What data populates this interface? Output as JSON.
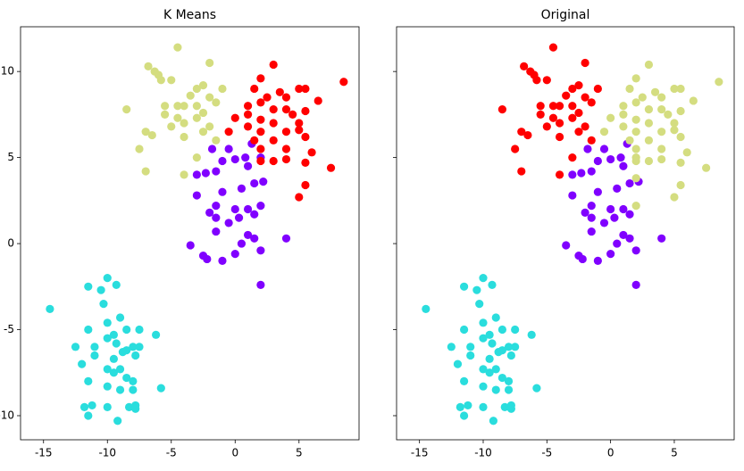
{
  "chart_data": [
    {
      "type": "scatter",
      "title": "K Means",
      "xlim": [
        -16.8,
        9.7
      ],
      "ylim": [
        -11.4,
        12.6
      ],
      "xticks": [
        -15,
        -10,
        -5,
        0,
        5
      ],
      "yticks": [
        -10,
        -5,
        0,
        5,
        10
      ],
      "show_yticklabels": true,
      "series": [
        {
          "color": "#8000ff",
          "x": [
            2,
            -3.5,
            -2.5,
            -2.2,
            -1,
            -1.5,
            0,
            0.5,
            1.5,
            2,
            4,
            1,
            -1.5,
            -0.5,
            0.3,
            1.5,
            -2,
            -1.5,
            0,
            1,
            2,
            -3,
            -1,
            0.5,
            1.5,
            2.2,
            -3,
            -1.5,
            -1,
            0,
            0.8,
            1,
            2,
            -1.8,
            -0.5,
            1.3,
            -2.3
          ],
          "y": [
            -2.4,
            -0.1,
            -0.7,
            -0.9,
            -1,
            0.7,
            -0.6,
            0,
            0.3,
            -0.4,
            0.3,
            0.5,
            1.5,
            1.2,
            1.5,
            1.7,
            1.8,
            2.2,
            2,
            2,
            2.2,
            2.8,
            3,
            3.2,
            3.5,
            3.6,
            4,
            4.2,
            4.8,
            4.9,
            5,
            4.5,
            5,
            5.5,
            5.5,
            5.8,
            4.1
          ]
        },
        {
          "color": "#2adddd",
          "x": [
            -14.5,
            -11.5,
            -10.5,
            -10,
            -9.3,
            -10.3,
            -11.5,
            -10,
            -9,
            -9.5,
            -8.5,
            -7.5,
            -6.2,
            -12.5,
            -11,
            -10,
            -9.3,
            -8.5,
            -8,
            -7.5,
            -12,
            -11,
            -9.5,
            -8.8,
            -7.8,
            -10,
            -9.5,
            -9,
            -8.5,
            -8,
            -11.5,
            -10,
            -9,
            -8,
            -5.8,
            -11.8,
            -11.5,
            -11.2,
            -10,
            -9.2,
            -8.3,
            -7.8,
            -7.8
          ],
          "y": [
            -3.8,
            -2.5,
            -2.7,
            -2,
            -2.4,
            -3.5,
            -5,
            -4.6,
            -4.3,
            -5.3,
            -5,
            -5,
            -5.3,
            -6,
            -6,
            -5.5,
            -5.8,
            -6.2,
            -6,
            -6,
            -7,
            -6.5,
            -6.7,
            -6.3,
            -6.5,
            -7.3,
            -7.5,
            -7.3,
            -7.8,
            -8,
            -8,
            -8.3,
            -8.5,
            -8.5,
            -8.4,
            -9.5,
            -10,
            -9.4,
            -9.5,
            -10.3,
            -9.5,
            -9.4,
            -9.6
          ]
        },
        {
          "color": "#d4dd80",
          "x": [
            -4.5,
            -6.8,
            -6.3,
            -2,
            -6,
            -5.8,
            -5,
            -3,
            -2.5,
            -3.5,
            -1,
            -2,
            -5.5,
            -4.5,
            -4,
            -3,
            -1.5,
            -8.5,
            -5.5,
            -4.5,
            -3,
            -2.5,
            -5,
            -4,
            -2,
            -7,
            -4,
            -6.5,
            -7.5,
            -2.5,
            -1.5,
            -3,
            -7,
            -4
          ],
          "y": [
            11.4,
            10.3,
            10,
            10.5,
            9.8,
            9.5,
            9.5,
            9,
            9.2,
            8.6,
            9,
            8.5,
            8,
            8,
            8,
            8,
            8.2,
            7.8,
            7.5,
            7.3,
            7.3,
            7.6,
            6.8,
            7,
            6.8,
            6.5,
            6.2,
            6.3,
            5.5,
            6.5,
            6,
            5,
            4.2,
            4
          ]
        },
        {
          "color": "#ff0000",
          "x": [
            2,
            3,
            1.5,
            2.5,
            3.5,
            4,
            5,
            5.5,
            6.5,
            8.5,
            1,
            2,
            3,
            4,
            4.5,
            5.5,
            1,
            2,
            3,
            5,
            0,
            1,
            2,
            4,
            5,
            -0.5,
            1.5,
            3,
            5.5,
            2,
            4,
            6,
            2,
            3,
            4,
            5.5,
            7.5,
            5.5,
            5
          ],
          "y": [
            9.6,
            10.4,
            9,
            8.5,
            8.8,
            8.5,
            9,
            9,
            8.3,
            9.4,
            8,
            8.2,
            7.8,
            7.8,
            7.5,
            7.7,
            7.5,
            7.2,
            7,
            7,
            7.3,
            6.8,
            6.5,
            6.5,
            6.6,
            6.5,
            6,
            6,
            6.2,
            5.5,
            5.5,
            5.3,
            4.8,
            4.8,
            4.9,
            4.7,
            4.4,
            3.4,
            2.7
          ]
        }
      ]
    },
    {
      "type": "scatter",
      "title": "Original",
      "xlim": [
        -16.8,
        9.7
      ],
      "ylim": [
        -11.4,
        12.6
      ],
      "xticks": [
        -15,
        -10,
        -5,
        0,
        5
      ],
      "yticks": [
        -10,
        -5,
        0,
        5,
        10
      ],
      "show_yticklabels": false,
      "series": [
        {
          "color": "#8000ff",
          "x": [
            2,
            -3.5,
            -2.5,
            -2.2,
            -1,
            -1.5,
            0,
            0.5,
            1.5,
            2,
            4,
            1,
            -1.5,
            -0.5,
            0.3,
            1.5,
            -2,
            -1.5,
            0,
            1,
            -3,
            -1,
            0.5,
            1.5,
            2.2,
            -3,
            -1.5,
            -1,
            0,
            0.8,
            1,
            -1.8,
            -0.5,
            1.3,
            -2.3
          ],
          "y": [
            -2.4,
            -0.1,
            -0.7,
            -0.9,
            -1,
            0.7,
            -0.6,
            0,
            0.3,
            -0.4,
            0.3,
            0.5,
            1.5,
            1.2,
            1.5,
            1.7,
            1.8,
            2.2,
            2,
            2,
            2.8,
            3,
            3.2,
            3.5,
            3.6,
            4,
            4.2,
            4.8,
            4.9,
            5,
            4.5,
            5.5,
            5.5,
            5.8,
            4.1
          ]
        },
        {
          "color": "#2adddd",
          "x": [
            -14.5,
            -11.5,
            -10.5,
            -10,
            -9.3,
            -10.3,
            -11.5,
            -10,
            -9,
            -9.5,
            -8.5,
            -7.5,
            -6.2,
            -12.5,
            -11,
            -10,
            -9.3,
            -8.5,
            -8,
            -7.5,
            -12,
            -11,
            -9.5,
            -8.8,
            -7.8,
            -10,
            -9.5,
            -9,
            -8.5,
            -8,
            -11.5,
            -10,
            -9,
            -8,
            -5.8,
            -11.8,
            -11.5,
            -11.2,
            -10,
            -9.2,
            -8.3,
            -7.8,
            -7.8
          ],
          "y": [
            -3.8,
            -2.5,
            -2.7,
            -2,
            -2.4,
            -3.5,
            -5,
            -4.6,
            -4.3,
            -5.3,
            -5,
            -5,
            -5.3,
            -6,
            -6,
            -5.5,
            -5.8,
            -6.2,
            -6,
            -6,
            -7,
            -6.5,
            -6.7,
            -6.3,
            -6.5,
            -7.3,
            -7.5,
            -7.3,
            -7.8,
            -8,
            -8,
            -8.3,
            -8.5,
            -8.5,
            -8.4,
            -9.5,
            -10,
            -9.4,
            -9.5,
            -10.3,
            -9.5,
            -9.4,
            -9.6
          ]
        },
        {
          "color": "#ff0000",
          "x": [
            -4.5,
            -6.8,
            -6.3,
            -2,
            -6,
            -5.8,
            -5,
            -3,
            -2.5,
            -3.5,
            -1,
            -2,
            -5.5,
            -4.5,
            -4,
            -3,
            -1.5,
            -8.5,
            -5.5,
            -4.5,
            -3,
            -2.5,
            -5,
            -4,
            -2,
            -7,
            -4,
            -6.5,
            -7.5,
            -2.5,
            -1.5,
            -3,
            -7,
            -4
          ],
          "y": [
            11.4,
            10.3,
            10,
            10.5,
            9.8,
            9.5,
            9.5,
            9,
            9.2,
            8.6,
            9,
            8.5,
            8,
            8,
            8,
            8,
            8.2,
            7.8,
            7.5,
            7.3,
            7.3,
            7.6,
            6.8,
            7,
            6.8,
            6.5,
            6.2,
            6.3,
            5.5,
            6.5,
            6,
            5,
            4.2,
            4
          ]
        },
        {
          "color": "#d4dd80",
          "x": [
            2,
            3,
            1.5,
            2.5,
            3.5,
            4,
            5,
            5.5,
            6.5,
            8.5,
            1,
            2,
            3,
            4,
            4.5,
            5.5,
            1,
            2,
            3,
            5,
            0,
            1,
            2,
            4,
            5,
            -0.5,
            1.5,
            3,
            5.5,
            2,
            4,
            6,
            2,
            3,
            4,
            5.5,
            7.5,
            5.5,
            5,
            2,
            2,
            2
          ],
          "y": [
            9.6,
            10.4,
            9,
            8.5,
            8.8,
            8.5,
            9,
            9,
            8.3,
            9.4,
            8,
            8.2,
            7.8,
            7.8,
            7.5,
            7.7,
            7.5,
            7.2,
            7,
            7,
            7.3,
            6.8,
            6.5,
            6.5,
            6.6,
            6.5,
            6,
            6,
            6.2,
            5.5,
            5.5,
            5.3,
            4.8,
            4.8,
            4.9,
            4.7,
            4.4,
            3.4,
            2.7,
            2.2,
            5,
            3.8
          ]
        }
      ]
    }
  ]
}
